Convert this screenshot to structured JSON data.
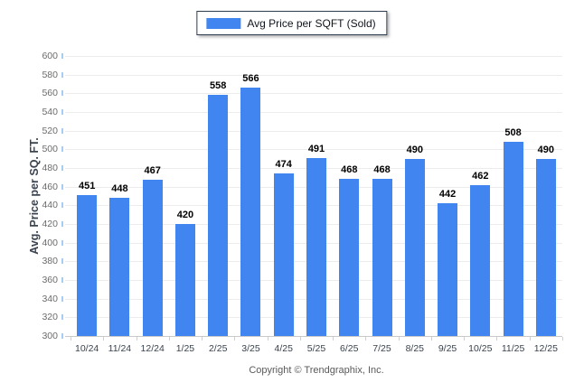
{
  "chart_data": {
    "type": "bar",
    "title": "",
    "legend": "Avg Price per SQFT (Sold)",
    "legend_position": "top-center",
    "categories": [
      "10/24",
      "11/24",
      "12/24",
      "1/25",
      "2/25",
      "3/25",
      "4/25",
      "5/25",
      "6/25",
      "7/25",
      "8/25",
      "9/25",
      "10/25",
      "11/25",
      "12/25"
    ],
    "values": [
      451,
      448,
      467,
      420,
      558,
      566,
      474,
      491,
      468,
      468,
      490,
      442,
      462,
      508,
      490
    ],
    "xlabel": "",
    "ylabel": "Avg. Price per SQ. FT.",
    "ylim": [
      300,
      600
    ],
    "yticks": [
      300,
      320,
      340,
      360,
      380,
      400,
      420,
      440,
      460,
      480,
      500,
      520,
      540,
      560,
      580,
      600
    ],
    "grid": true,
    "bar_color": "#4186F0"
  },
  "footer": {
    "copyright": "Copyright © Trendgraphix, Inc."
  }
}
